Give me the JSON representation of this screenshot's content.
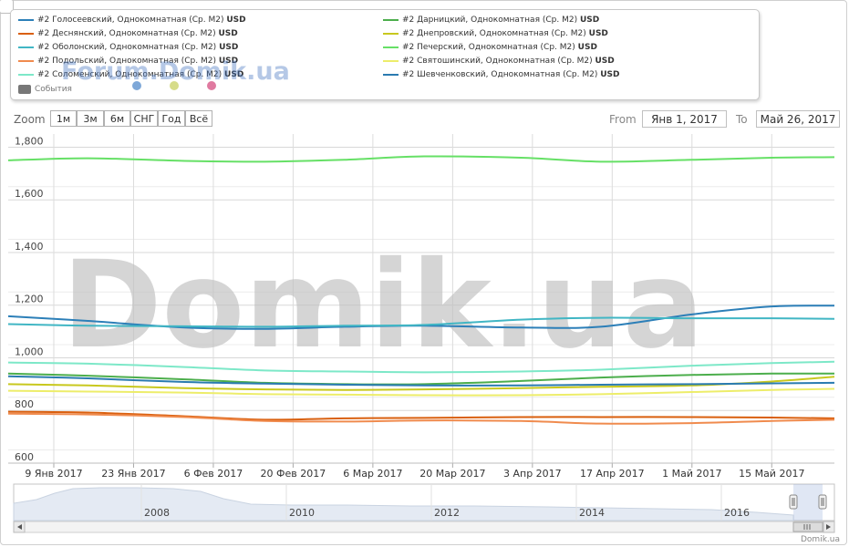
{
  "legend": {
    "items": [
      {
        "name": "#2 Голосеевский, Однокомнатная (Ср. М2)",
        "unit": "USD",
        "color": "#2c7fb8"
      },
      {
        "name": "#2 Деснянский, Однокомнатная (Ср. М2)",
        "unit": "USD",
        "color": "#d95f0e"
      },
      {
        "name": "#2 Оболонский, Однокомнатная (Ср. М2)",
        "unit": "USD",
        "color": "#41b6c4"
      },
      {
        "name": "#2 Подольский, Однокомнатная (Ср. М2)",
        "unit": "USD",
        "color": "#f08b4e"
      },
      {
        "name": "#2 Соломенский, Однокомнатная (Ср. М2)",
        "unit": "USD",
        "color": "#7de8c8"
      },
      {
        "name": "#2 Дарницкий, Однокомнатная (Ср. М2)",
        "unit": "USD",
        "color": "#4cae4c"
      },
      {
        "name": "#2 Днепровский, Однокомнатная (Ср. М2)",
        "unit": "USD",
        "color": "#c8c81e"
      },
      {
        "name": "#2 Печерский, Однокомнатная (Ср. М2)",
        "unit": "USD",
        "color": "#66e066"
      },
      {
        "name": "#2 Святошинский, Однокомнатная (Ср. М2)",
        "unit": "USD",
        "color": "#eded6a"
      },
      {
        "name": "#2 Шевченковский, Однокомнатная (Ср. М2)",
        "unit": "USD",
        "color": "#2a7bb0"
      }
    ],
    "events_label": "События",
    "watermark_small": "Forum.Domik.ua",
    "dot_colors": [
      "#7ea8d8",
      "#d6dc8a",
      "#e07aa0"
    ]
  },
  "controls": {
    "zoom_label": "Zoom",
    "zoom_buttons": [
      "1м",
      "3м",
      "6м",
      "СНГ",
      "Год",
      "Всё"
    ],
    "from_label": "From",
    "from_value": "Янв 1, 2017",
    "to_label": "To",
    "to_value": "Май 26, 2017"
  },
  "watermark": "Domik.ua",
  "credit": "Domik.ua",
  "chart_data": {
    "type": "line",
    "x_tick_labels": [
      "9 Янв 2017",
      "23 Янв 2017",
      "6 Фев 2017",
      "20 Фев 2017",
      "6 Мар 2017",
      "20 Мар 2017",
      "3 Апр 2017",
      "17 Апр 2017",
      "1 Май 2017",
      "15 Май 2017"
    ],
    "y_tick_labels": [
      "600",
      "800",
      "1,000",
      "1,200",
      "1,400",
      "1,600",
      "1,800"
    ],
    "ylim": [
      600,
      1850
    ],
    "x_range": [
      "2017-01-01",
      "2017-05-26"
    ],
    "grid": true,
    "series": [
      {
        "name": "#2 Голосеевский, Однокомнатная (Ср. М2)",
        "color": "#2c7fb8",
        "x": [
          "2017-01-01",
          "2017-01-15",
          "2017-02-01",
          "2017-02-15",
          "2017-03-01",
          "2017-03-15",
          "2017-04-01",
          "2017-04-15",
          "2017-05-01",
          "2017-05-15",
          "2017-05-26"
        ],
        "values": [
          1158,
          1140,
          1115,
          1110,
          1118,
          1122,
          1115,
          1118,
          1165,
          1195,
          1198
        ]
      },
      {
        "name": "#2 Деснянский, Однокомнатная (Ср. М2)",
        "color": "#d95f0e",
        "x": [
          "2017-01-01",
          "2017-01-15",
          "2017-02-01",
          "2017-02-15",
          "2017-03-01",
          "2017-03-15",
          "2017-04-01",
          "2017-04-15",
          "2017-05-01",
          "2017-05-15",
          "2017-05-26"
        ],
        "values": [
          795,
          792,
          778,
          765,
          770,
          772,
          775,
          775,
          775,
          773,
          770
        ]
      },
      {
        "name": "#2 Оболонский, Однокомнатная (Ср. М2)",
        "color": "#41b6c4",
        "x": [
          "2017-01-01",
          "2017-01-15",
          "2017-02-01",
          "2017-02-15",
          "2017-03-01",
          "2017-03-15",
          "2017-04-01",
          "2017-04-15",
          "2017-05-01",
          "2017-05-15",
          "2017-05-26"
        ],
        "values": [
          1128,
          1122,
          1120,
          1118,
          1122,
          1125,
          1145,
          1152,
          1150,
          1150,
          1148
        ]
      },
      {
        "name": "#2 Подольский, Однокомнатная (Ср. М2)",
        "color": "#f08b4e",
        "x": [
          "2017-01-01",
          "2017-01-15",
          "2017-02-01",
          "2017-02-15",
          "2017-03-01",
          "2017-03-15",
          "2017-04-01",
          "2017-04-15",
          "2017-05-01",
          "2017-05-15",
          "2017-05-26"
        ],
        "values": [
          788,
          785,
          775,
          760,
          758,
          762,
          760,
          750,
          752,
          760,
          765
        ]
      },
      {
        "name": "#2 Соломенский, Однокомнатная (Ср. М2)",
        "color": "#7de8c8",
        "x": [
          "2017-01-01",
          "2017-01-15",
          "2017-02-01",
          "2017-02-15",
          "2017-03-01",
          "2017-03-15",
          "2017-04-01",
          "2017-04-15",
          "2017-05-01",
          "2017-05-15",
          "2017-05-26"
        ],
        "values": [
          982,
          978,
          965,
          952,
          948,
          945,
          948,
          955,
          970,
          980,
          985
        ]
      },
      {
        "name": "#2 Дарницкий, Однокомнатная (Ср. М2)",
        "color": "#4cae4c",
        "x": [
          "2017-01-01",
          "2017-01-15",
          "2017-02-01",
          "2017-02-15",
          "2017-03-01",
          "2017-03-15",
          "2017-04-01",
          "2017-04-15",
          "2017-05-01",
          "2017-05-15",
          "2017-05-26"
        ],
        "values": [
          940,
          932,
          918,
          905,
          900,
          900,
          912,
          925,
          935,
          940,
          940
        ]
      },
      {
        "name": "#2 Днепровский, Однокомнатная (Ср. М2)",
        "color": "#c8c81e",
        "x": [
          "2017-01-01",
          "2017-01-15",
          "2017-02-01",
          "2017-02-15",
          "2017-03-01",
          "2017-03-15",
          "2017-04-01",
          "2017-04-15",
          "2017-05-01",
          "2017-05-15",
          "2017-05-26"
        ],
        "values": [
          900,
          895,
          885,
          880,
          878,
          880,
          885,
          890,
          895,
          910,
          928
        ]
      },
      {
        "name": "#2 Печерский, Однокомнатная (Ср. М2)",
        "color": "#66e066",
        "x": [
          "2017-01-01",
          "2017-01-15",
          "2017-02-01",
          "2017-02-15",
          "2017-03-01",
          "2017-03-15",
          "2017-04-01",
          "2017-04-15",
          "2017-05-01",
          "2017-05-15",
          "2017-05-26"
        ],
        "values": [
          1750,
          1758,
          1748,
          1745,
          1752,
          1765,
          1760,
          1745,
          1752,
          1760,
          1762
        ]
      },
      {
        "name": "#2 Святошинский, Однокомнатная (Ср. М2)",
        "color": "#eded6a",
        "x": [
          "2017-01-01",
          "2017-01-15",
          "2017-02-01",
          "2017-02-15",
          "2017-03-01",
          "2017-03-15",
          "2017-04-01",
          "2017-04-15",
          "2017-05-01",
          "2017-05-15",
          "2017-05-26"
        ],
        "values": [
          875,
          872,
          868,
          862,
          860,
          858,
          858,
          862,
          870,
          878,
          882
        ]
      },
      {
        "name": "#2 Шевченковский, Однокомнатная (Ср. М2)",
        "color": "#2a7bb0",
        "x": [
          "2017-01-01",
          "2017-01-15",
          "2017-02-01",
          "2017-02-15",
          "2017-03-01",
          "2017-03-15",
          "2017-04-01",
          "2017-04-15",
          "2017-05-01",
          "2017-05-15",
          "2017-05-26"
        ],
        "values": [
          930,
          922,
          908,
          902,
          898,
          895,
          895,
          898,
          900,
          903,
          905
        ]
      }
    ],
    "navigator": {
      "tick_labels": [
        "2008",
        "2010",
        "2012",
        "2014",
        "2016"
      ]
    }
  }
}
